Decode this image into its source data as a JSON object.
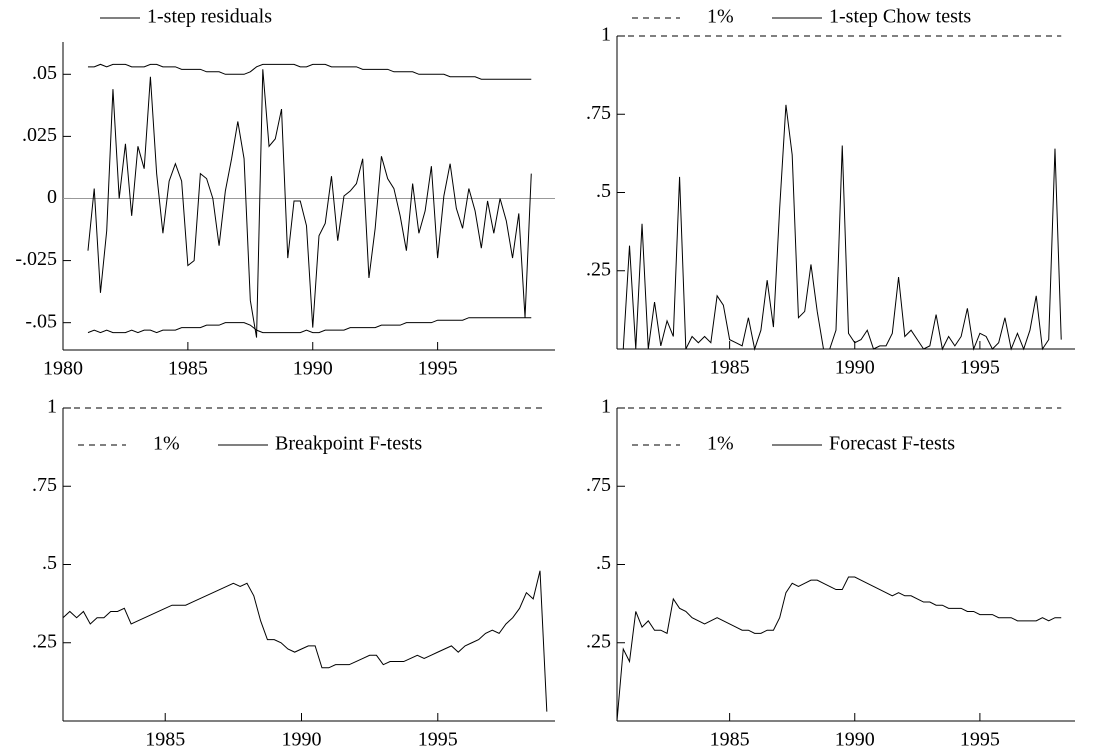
{
  "chart_data": [
    {
      "type": "line",
      "legend": "above",
      "zero_line": true,
      "color": "#000000",
      "xlim": [
        1980,
        1999.7
      ],
      "xticks": [
        1980,
        1985,
        1990,
        1995
      ],
      "ylim": [
        -0.061,
        0.063
      ],
      "yticks": [
        {
          "value": -0.05,
          "label": "-.05"
        },
        {
          "value": -0.025,
          "label": "-.025"
        },
        0,
        {
          "value": 0.025,
          "label": ".025"
        },
        {
          "value": 0.05,
          "label": ".05"
        }
      ],
      "x": [
        1981,
        1981.25,
        1981.5,
        1981.75,
        1982,
        1982.25,
        1982.5,
        1982.75,
        1983,
        1983.25,
        1983.5,
        1983.75,
        1984,
        1984.25,
        1984.5,
        1984.75,
        1985,
        1985.25,
        1985.5,
        1985.75,
        1986,
        1986.25,
        1986.5,
        1986.75,
        1987,
        1987.25,
        1987.5,
        1987.75,
        1988,
        1988.25,
        1988.5,
        1988.75,
        1989,
        1989.25,
        1989.5,
        1989.75,
        1990,
        1990.25,
        1990.5,
        1990.75,
        1991,
        1991.25,
        1991.5,
        1991.75,
        1992,
        1992.25,
        1992.5,
        1992.75,
        1993,
        1993.25,
        1993.5,
        1993.75,
        1994,
        1994.25,
        1994.5,
        1994.75,
        1995,
        1995.25,
        1995.5,
        1995.75,
        1996,
        1996.25,
        1996.5,
        1996.75,
        1997,
        1997.25,
        1997.5,
        1997.75,
        1998,
        1998.25,
        1998.5,
        1998.75
      ],
      "series": [
        {
          "name": "1-step residuals",
          "values": [
            -0.021,
            0.004,
            -0.038,
            -0.013,
            0.044,
            0,
            0.022,
            -0.007,
            0.021,
            0.012,
            0.049,
            0.01,
            -0.014,
            0.007,
            0.014,
            0.007,
            -0.027,
            -0.025,
            0.01,
            0.008,
            0,
            -0.019,
            0.003,
            0.016,
            0.031,
            0.016,
            -0.041,
            -0.056,
            0.052,
            0.021,
            0.024,
            0.036,
            -0.024,
            -0.001,
            -0.001,
            -0.011,
            -0.052,
            -0.015,
            -0.01,
            0.009,
            -0.017,
            0.001,
            0.003,
            0.006,
            0.016,
            -0.032,
            -0.012,
            0.017,
            0.008,
            0.004,
            -0.007,
            -0.021,
            0.006,
            -0.014,
            -0.005,
            0.013,
            -0.024,
            0.001,
            0.014,
            -0.004,
            -0.012,
            0.004,
            -0.005,
            -0.02,
            -0.001,
            -0.014,
            0,
            -0.009,
            -0.024,
            -0.006,
            -0.048,
            0.01
          ]
        },
        {
          "values": [
            0.053,
            0.053,
            0.054,
            0.053,
            0.054,
            0.054,
            0.054,
            0.053,
            0.053,
            0.053,
            0.054,
            0.054,
            0.053,
            0.053,
            0.053,
            0.052,
            0.052,
            0.052,
            0.052,
            0.051,
            0.051,
            0.051,
            0.05,
            0.05,
            0.05,
            0.05,
            0.051,
            0.053,
            0.054,
            0.054,
            0.054,
            0.054,
            0.054,
            0.054,
            0.053,
            0.053,
            0.054,
            0.054,
            0.054,
            0.053,
            0.053,
            0.053,
            0.053,
            0.053,
            0.052,
            0.052,
            0.052,
            0.052,
            0.052,
            0.051,
            0.051,
            0.051,
            0.051,
            0.05,
            0.05,
            0.05,
            0.05,
            0.05,
            0.049,
            0.049,
            0.049,
            0.049,
            0.049,
            0.048,
            0.048,
            0.048,
            0.048,
            0.048,
            0.048,
            0.048,
            0.048,
            0.048
          ]
        },
        {
          "values": [
            -0.054,
            -0.053,
            -0.054,
            -0.053,
            -0.054,
            -0.054,
            -0.054,
            -0.053,
            -0.054,
            -0.053,
            -0.053,
            -0.054,
            -0.053,
            -0.053,
            -0.053,
            -0.052,
            -0.052,
            -0.052,
            -0.052,
            -0.051,
            -0.051,
            -0.051,
            -0.05,
            -0.05,
            -0.05,
            -0.05,
            -0.051,
            -0.053,
            -0.054,
            -0.054,
            -0.054,
            -0.054,
            -0.054,
            -0.054,
            -0.054,
            -0.053,
            -0.054,
            -0.054,
            -0.053,
            -0.053,
            -0.053,
            -0.053,
            -0.052,
            -0.052,
            -0.052,
            -0.052,
            -0.052,
            -0.051,
            -0.051,
            -0.051,
            -0.051,
            -0.05,
            -0.05,
            -0.05,
            -0.05,
            -0.05,
            -0.049,
            -0.049,
            -0.049,
            -0.049,
            -0.049,
            -0.048,
            -0.048,
            -0.048,
            -0.048,
            -0.048,
            -0.048,
            -0.048,
            -0.048,
            -0.048,
            -0.048,
            -0.048
          ]
        }
      ]
    },
    {
      "type": "line",
      "legend": "above",
      "color": "#000000",
      "xlim": [
        1980.5,
        1998.8
      ],
      "xticks": [
        1985,
        1990,
        1995
      ],
      "ylim": [
        0,
        1
      ],
      "yticks": [
        {
          "value": 0.25,
          "label": ".25"
        },
        {
          "value": 0.5,
          "label": ".5"
        },
        {
          "value": 0.75,
          "label": ".75"
        },
        1
      ],
      "reference": {
        "name": "1%",
        "value": 1,
        "dash": "dashed"
      },
      "x": [
        1980.5,
        1980.75,
        1981,
        1981.25,
        1981.5,
        1981.75,
        1982,
        1982.25,
        1982.5,
        1982.75,
        1983,
        1983.25,
        1983.5,
        1983.75,
        1984,
        1984.25,
        1984.5,
        1984.75,
        1985,
        1985.25,
        1985.5,
        1985.75,
        1986,
        1986.25,
        1986.5,
        1986.75,
        1987,
        1987.25,
        1987.5,
        1987.75,
        1988,
        1988.25,
        1988.5,
        1988.75,
        1989,
        1989.25,
        1989.5,
        1989.75,
        1990,
        1990.25,
        1990.5,
        1990.75,
        1991,
        1991.25,
        1991.5,
        1991.75,
        1992,
        1992.25,
        1992.5,
        1992.75,
        1993,
        1993.25,
        1993.5,
        1993.75,
        1994,
        1994.25,
        1994.5,
        1994.75,
        1995,
        1995.25,
        1995.5,
        1995.75,
        1996,
        1996.25,
        1996.5,
        1996.75,
        1997,
        1997.25,
        1997.5,
        1997.75,
        1998,
        1998.25
      ],
      "series": [
        {
          "name": "1-step Chow tests",
          "values": [
            0,
            0,
            0.33,
            0,
            0.4,
            0,
            0.15,
            0.01,
            0.09,
            0.04,
            0.55,
            0,
            0.04,
            0.02,
            0.04,
            0.02,
            0.17,
            0.14,
            0.03,
            0.02,
            0.01,
            0.1,
            0,
            0.06,
            0.22,
            0.07,
            0.45,
            0.78,
            0.62,
            0.1,
            0.12,
            0.27,
            0.12,
            0,
            0,
            0.06,
            0.65,
            0.05,
            0.02,
            0.03,
            0.06,
            0,
            0.01,
            0.01,
            0.05,
            0.23,
            0.04,
            0.06,
            0.03,
            0,
            0.01,
            0.11,
            0,
            0.04,
            0.01,
            0.04,
            0.13,
            0,
            0.05,
            0.04,
            0,
            0.02,
            0.1,
            0,
            0.05,
            0,
            0.06,
            0.17,
            0,
            0.03,
            0.64,
            0.03
          ]
        }
      ]
    },
    {
      "type": "line",
      "legend": "inside",
      "color": "#000000",
      "xlim": [
        1981.25,
        1999.3
      ],
      "xticks": [
        1985,
        1990,
        1995
      ],
      "ylim": [
        0,
        1
      ],
      "yticks": [
        {
          "value": 0.25,
          "label": ".25"
        },
        {
          "value": 0.5,
          "label": ".5"
        },
        {
          "value": 0.75,
          "label": ".75"
        },
        1
      ],
      "reference": {
        "name": "1%",
        "value": 1,
        "dash": "dashed"
      },
      "x": [
        1981.25,
        1981.5,
        1981.75,
        1982,
        1982.25,
        1982.5,
        1982.75,
        1983,
        1983.25,
        1983.5,
        1983.75,
        1984,
        1984.25,
        1984.5,
        1984.75,
        1985,
        1985.25,
        1985.5,
        1985.75,
        1986,
        1986.25,
        1986.5,
        1986.75,
        1987,
        1987.25,
        1987.5,
        1987.75,
        1988,
        1988.25,
        1988.5,
        1988.75,
        1989,
        1989.25,
        1989.5,
        1989.75,
        1990,
        1990.25,
        1990.5,
        1990.75,
        1991,
        1991.25,
        1991.5,
        1991.75,
        1992,
        1992.25,
        1992.5,
        1992.75,
        1993,
        1993.25,
        1993.5,
        1993.75,
        1994,
        1994.25,
        1994.5,
        1994.75,
        1995,
        1995.25,
        1995.5,
        1995.75,
        1996,
        1996.25,
        1996.5,
        1996.75,
        1997,
        1997.25,
        1997.5,
        1997.75,
        1998,
        1998.25,
        1998.5,
        1998.75,
        1999
      ],
      "series": [
        {
          "name": "Breakpoint F-tests",
          "values": [
            0.33,
            0.35,
            0.33,
            0.35,
            0.31,
            0.33,
            0.33,
            0.35,
            0.35,
            0.36,
            0.31,
            0.32,
            0.33,
            0.34,
            0.35,
            0.36,
            0.37,
            0.37,
            0.37,
            0.38,
            0.39,
            0.4,
            0.41,
            0.42,
            0.43,
            0.44,
            0.43,
            0.44,
            0.4,
            0.32,
            0.26,
            0.26,
            0.25,
            0.23,
            0.22,
            0.23,
            0.24,
            0.24,
            0.17,
            0.17,
            0.18,
            0.18,
            0.18,
            0.19,
            0.2,
            0.21,
            0.21,
            0.18,
            0.19,
            0.19,
            0.19,
            0.2,
            0.21,
            0.2,
            0.21,
            0.22,
            0.23,
            0.24,
            0.22,
            0.24,
            0.25,
            0.26,
            0.28,
            0.29,
            0.28,
            0.31,
            0.33,
            0.36,
            0.41,
            0.39,
            0.48,
            0.03
          ]
        }
      ]
    },
    {
      "type": "line",
      "legend": "inside",
      "color": "#000000",
      "xlim": [
        1980.5,
        1998.8
      ],
      "xticks": [
        1985,
        1990,
        1995
      ],
      "ylim": [
        0,
        1
      ],
      "yticks": [
        {
          "value": 0.25,
          "label": ".25"
        },
        {
          "value": 0.5,
          "label": ".5"
        },
        {
          "value": 0.75,
          "label": ".75"
        },
        1
      ],
      "reference": {
        "name": "1%",
        "value": 1,
        "dash": "dashed"
      },
      "x": [
        1980.5,
        1980.75,
        1981,
        1981.25,
        1981.5,
        1981.75,
        1982,
        1982.25,
        1982.5,
        1982.75,
        1983,
        1983.25,
        1983.5,
        1983.75,
        1984,
        1984.25,
        1984.5,
        1984.75,
        1985,
        1985.25,
        1985.5,
        1985.75,
        1986,
        1986.25,
        1986.5,
        1986.75,
        1987,
        1987.25,
        1987.5,
        1987.75,
        1988,
        1988.25,
        1988.5,
        1988.75,
        1989,
        1989.25,
        1989.5,
        1989.75,
        1990,
        1990.25,
        1990.5,
        1990.75,
        1991,
        1991.25,
        1991.5,
        1991.75,
        1992,
        1992.25,
        1992.5,
        1992.75,
        1993,
        1993.25,
        1993.5,
        1993.75,
        1994,
        1994.25,
        1994.5,
        1994.75,
        1995,
        1995.25,
        1995.5,
        1995.75,
        1996,
        1996.25,
        1996.5,
        1996.75,
        1997,
        1997.25,
        1997.5,
        1997.75,
        1998,
        1998.25
      ],
      "series": [
        {
          "name": "Forecast F-tests",
          "values": [
            0,
            0.23,
            0.19,
            0.35,
            0.3,
            0.32,
            0.29,
            0.29,
            0.28,
            0.39,
            0.36,
            0.35,
            0.33,
            0.32,
            0.31,
            0.32,
            0.33,
            0.32,
            0.31,
            0.3,
            0.29,
            0.29,
            0.28,
            0.28,
            0.29,
            0.29,
            0.33,
            0.41,
            0.44,
            0.43,
            0.44,
            0.45,
            0.45,
            0.44,
            0.43,
            0.42,
            0.42,
            0.46,
            0.46,
            0.45,
            0.44,
            0.43,
            0.42,
            0.41,
            0.4,
            0.41,
            0.4,
            0.4,
            0.39,
            0.38,
            0.38,
            0.37,
            0.37,
            0.36,
            0.36,
            0.36,
            0.35,
            0.35,
            0.34,
            0.34,
            0.34,
            0.33,
            0.33,
            0.33,
            0.32,
            0.32,
            0.32,
            0.32,
            0.33,
            0.32,
            0.33,
            0.33
          ]
        }
      ]
    }
  ]
}
